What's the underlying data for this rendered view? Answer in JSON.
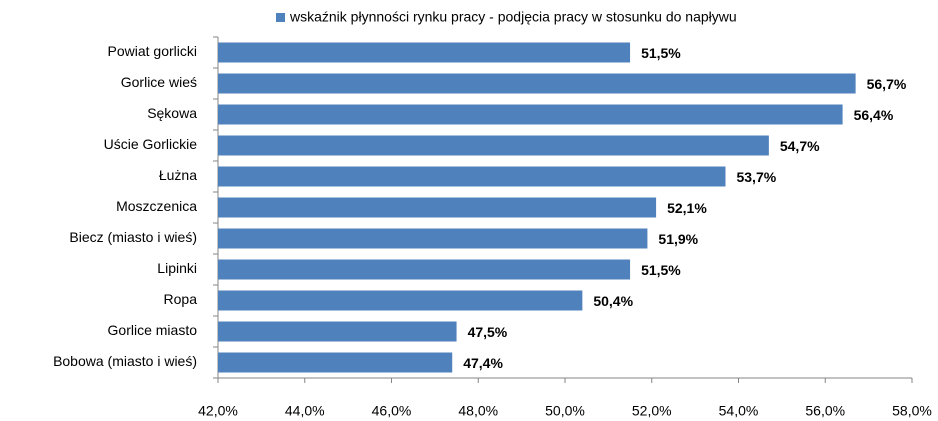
{
  "chart_data": {
    "type": "bar",
    "orientation": "horizontal",
    "categories": [
      "Powiat gorlicki",
      "Gorlice wieś",
      "Sękowa",
      "Uście Gorlickie",
      "Łużna",
      "Moszczenica",
      "Biecz (miasto  i wieś)",
      "Lipinki",
      "Ropa",
      "Gorlice miasto",
      "Bobowa (miasto  i wieś)"
    ],
    "series": [
      {
        "name": "wskaźnik płynności rynku pracy - podjęcia pracy w stosunku do napływu",
        "color": "#4f81bd",
        "values": [
          51.5,
          56.7,
          56.4,
          54.7,
          53.7,
          52.1,
          51.9,
          51.5,
          50.4,
          47.5,
          47.4
        ],
        "value_labels": [
          "51,5%",
          "56,7%",
          "56,4%",
          "54,7%",
          "53,7%",
          "52,1%",
          "51,9%",
          "51,5%",
          "50,4%",
          "47,5%",
          "47,4%"
        ]
      }
    ],
    "xlim": [
      42,
      58
    ],
    "xticks": [
      {
        "value": 42,
        "label": "42,0%"
      },
      {
        "value": 44,
        "label": "44,0%"
      },
      {
        "value": 46,
        "label": "46,0%"
      },
      {
        "value": 48,
        "label": "48,0%"
      },
      {
        "value": 50,
        "label": "50,0%"
      },
      {
        "value": 52,
        "label": "52,0%"
      },
      {
        "value": 54,
        "label": "54,0%"
      },
      {
        "value": 56,
        "label": "56,0%"
      },
      {
        "value": 58,
        "label": "58,0%"
      }
    ],
    "legend": "top",
    "grid": false
  }
}
